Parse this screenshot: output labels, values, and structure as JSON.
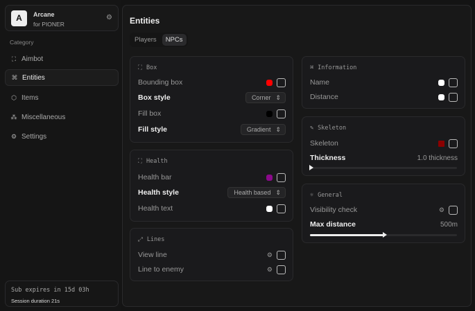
{
  "app": {
    "logo_letter": "A",
    "name": "Arcane",
    "subtitle": "for PIONER"
  },
  "sidebar": {
    "category_label": "Category",
    "items": [
      {
        "label": "Aimbot",
        "icon": "crosshair-icon"
      },
      {
        "label": "Entities",
        "icon": "scan-face-icon",
        "active": true
      },
      {
        "label": "Items",
        "icon": "box-icon"
      },
      {
        "label": "Miscellaneous",
        "icon": "grid-icon"
      },
      {
        "label": "Settings",
        "icon": "gear-icon"
      }
    ]
  },
  "footer": {
    "subscription": "Sub expires in 15d 03h",
    "session": "Session duration 21s"
  },
  "main": {
    "title": "Entities",
    "tabs": [
      {
        "label": "Players"
      },
      {
        "label": "NPCs",
        "active": true
      }
    ]
  },
  "sections": {
    "box": {
      "title": "Box",
      "bounding_box": {
        "label": "Bounding box",
        "color": "#ff0000",
        "checked": false
      },
      "box_style": {
        "label": "Box style",
        "value": "Corner"
      },
      "fill_box": {
        "label": "Fill box",
        "color": "#000000",
        "checked": false
      },
      "fill_style": {
        "label": "Fill style",
        "value": "Gradient"
      }
    },
    "health": {
      "title": "Health",
      "health_bar": {
        "label": "Health bar",
        "color": "#8b0a8b",
        "checked": false
      },
      "health_style": {
        "label": "Health style",
        "value": "Health based"
      },
      "health_text": {
        "label": "Health text",
        "color": "#ffffff",
        "checked": false
      }
    },
    "lines": {
      "title": "Lines",
      "view_line": {
        "label": "View line",
        "checked": false
      },
      "line_to_enemy": {
        "label": "Line to enemy",
        "checked": false
      }
    },
    "information": {
      "title": "Information",
      "name": {
        "label": "Name",
        "color": "#ffffff",
        "checked": false
      },
      "distance": {
        "label": "Distance",
        "color": "#ffffff",
        "checked": false
      }
    },
    "skeleton": {
      "title": "Skeleton",
      "skeleton": {
        "label": "Skeleton",
        "color": "#8b0000",
        "checked": false
      },
      "thickness": {
        "label": "Thickness",
        "value": "1.0 thickness",
        "fraction": 0.0
      }
    },
    "general": {
      "title": "General",
      "visibility_check": {
        "label": "Visibility check",
        "checked": false
      },
      "max_distance": {
        "label": "Max distance",
        "value": "500m",
        "fraction": 0.5
      }
    }
  }
}
